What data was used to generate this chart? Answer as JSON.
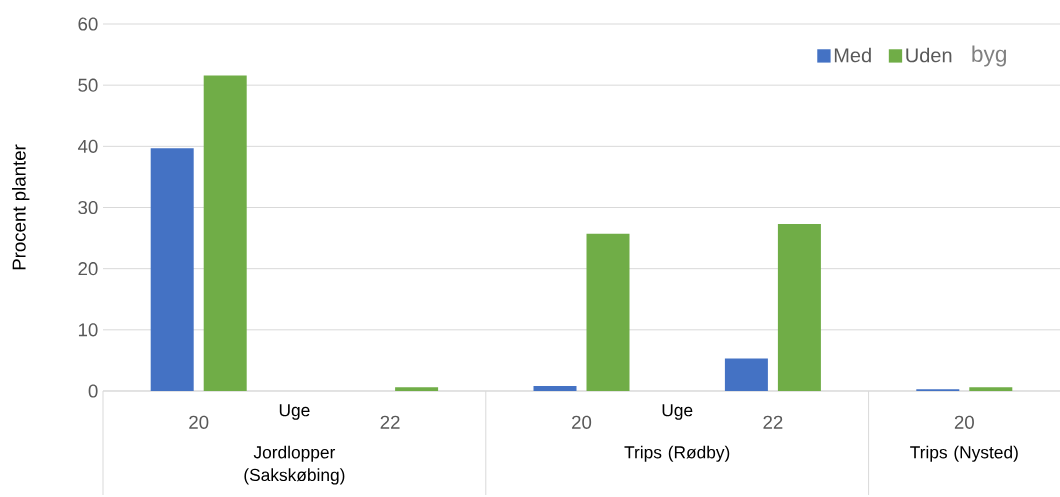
{
  "chart_data": {
    "type": "bar",
    "ylabel": "Procent planter",
    "categories": [
      "20",
      "22",
      "20",
      "22",
      "20"
    ],
    "series": [
      {
        "name": "Med",
        "color": "#4472c4",
        "values": [
          39.7,
          0,
          0.8,
          5.3,
          0.3
        ]
      },
      {
        "name": "Uden",
        "color": "#70ad47",
        "values": [
          51.6,
          0.6,
          25.7,
          27.3,
          0.6
        ]
      }
    ],
    "ylim": [
      0,
      60
    ],
    "yticks": [
      0,
      10,
      20,
      30,
      40,
      50,
      60
    ],
    "grid": "y",
    "legend": "top right",
    "annotations": [
      "Uge",
      "Uge",
      "Jordlopper (Sakskøbing)",
      "Trips (Rødby)",
      "Trips (Nysted)",
      "byg"
    ]
  }
}
